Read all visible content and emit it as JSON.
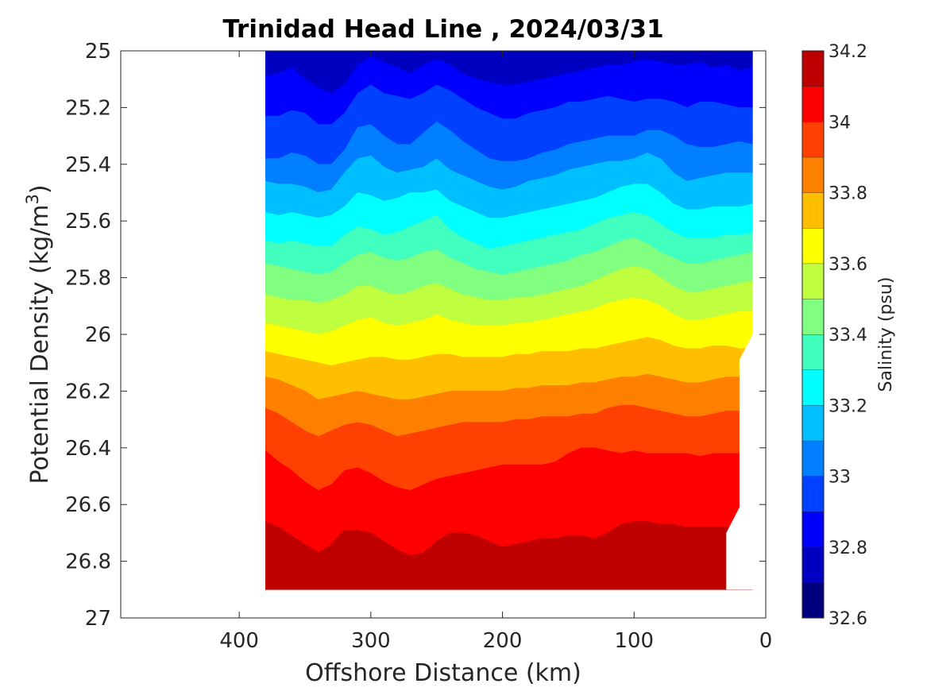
{
  "chart_data": {
    "type": "heatmap",
    "subtype": "filled-contour",
    "title": "Trinidad Head Line , 2024/03/31",
    "xlabel": "Offshore Distance (km)",
    "ylabel_main": "Potential Density (kg/m",
    "ylabel_sup": "3",
    "ylabel_close": ")",
    "xlim": [
      490,
      0
    ],
    "ylim": [
      25,
      27
    ],
    "y_reversed": true,
    "x_reversed": true,
    "x_ticks": [
      400,
      300,
      200,
      100,
      0
    ],
    "x_tick_labels": [
      "400",
      "300",
      "200",
      "100",
      "0"
    ],
    "y_ticks": [
      25,
      25.2,
      25.4,
      25.6,
      25.8,
      26,
      26.2,
      26.4,
      26.6,
      26.8,
      27
    ],
    "y_tick_labels": [
      "25",
      "25.2",
      "25.4",
      "25.6",
      "25.8",
      "26",
      "26.2",
      "26.4",
      "26.6",
      "26.8",
      "27"
    ],
    "colorbar": {
      "label": "Salinity (psu)",
      "clim": [
        32.6,
        34.2
      ],
      "levels": [
        32.6,
        32.7,
        32.8,
        32.9,
        33.0,
        33.1,
        33.2,
        33.3,
        33.4,
        33.5,
        33.6,
        33.7,
        33.8,
        33.9,
        34.0,
        34.1,
        34.2
      ],
      "colors": [
        "#00007f",
        "#0000c0",
        "#0000ff",
        "#0040ff",
        "#0080ff",
        "#00bfff",
        "#00ffff",
        "#40ffbf",
        "#80ff80",
        "#bfff40",
        "#ffff00",
        "#ffbf00",
        "#ff8000",
        "#ff4000",
        "#ff0000",
        "#bf0000"
      ],
      "ticks": [
        32.6,
        32.8,
        33,
        33.2,
        33.4,
        33.6,
        33.8,
        34,
        34.2
      ],
      "tick_labels": [
        "32.6",
        "32.8",
        "33",
        "33.2",
        "33.4",
        "33.6",
        "33.8",
        "34",
        "34.2"
      ]
    },
    "data_extent": {
      "x_range_km": [
        380,
        10
      ],
      "y_bottom_density": 26.9
    },
    "stations_km": [
      380,
      370,
      360,
      350,
      340,
      330,
      320,
      310,
      300,
      290,
      280,
      270,
      260,
      250,
      240,
      230,
      220,
      210,
      200,
      190,
      180,
      170,
      160,
      150,
      140,
      130,
      120,
      110,
      100,
      90,
      80,
      70,
      60,
      50,
      40,
      30,
      20,
      10
    ],
    "isohalines": [
      {
        "salinity": 32.8,
        "density": [
          25.09,
          25.08,
          25.06,
          25.1,
          25.13,
          25.15,
          25.12,
          25.05,
          25.02,
          25.04,
          25.06,
          25.08,
          25.05,
          25.03,
          25.05,
          25.08,
          25.1,
          25.11,
          25.12,
          25.12,
          25.11,
          25.1,
          25.09,
          25.08,
          25.07,
          25.06,
          25.05,
          25.05,
          25.04,
          25.03,
          25.04,
          25.05,
          25.05,
          25.04,
          25.06,
          25.05,
          25.07,
          25.06
        ]
      },
      {
        "salinity": 32.9,
        "density": [
          25.23,
          25.23,
          25.21,
          25.22,
          25.26,
          25.26,
          25.22,
          25.15,
          25.12,
          25.15,
          25.16,
          25.17,
          25.15,
          25.12,
          25.14,
          25.17,
          25.2,
          25.22,
          25.24,
          25.24,
          25.22,
          25.21,
          25.2,
          25.18,
          25.18,
          25.17,
          25.16,
          25.17,
          25.18,
          25.17,
          25.17,
          25.18,
          25.2,
          25.18,
          25.18,
          25.19,
          25.2,
          25.2
        ]
      },
      {
        "salinity": 33.0,
        "density": [
          25.38,
          25.38,
          25.36,
          25.37,
          25.4,
          25.4,
          25.35,
          25.27,
          25.26,
          25.3,
          25.33,
          25.33,
          25.29,
          25.25,
          25.28,
          25.32,
          25.35,
          25.38,
          25.39,
          25.39,
          25.38,
          25.36,
          25.35,
          25.33,
          25.32,
          25.31,
          25.3,
          25.3,
          25.3,
          25.28,
          25.28,
          25.3,
          25.33,
          25.34,
          25.34,
          25.33,
          25.32,
          25.33
        ]
      },
      {
        "salinity": 33.1,
        "density": [
          25.46,
          25.47,
          25.47,
          25.48,
          25.5,
          25.49,
          25.43,
          25.38,
          25.37,
          25.41,
          25.43,
          25.42,
          25.41,
          25.38,
          25.42,
          25.44,
          25.46,
          25.48,
          25.49,
          25.48,
          25.46,
          25.45,
          25.44,
          25.42,
          25.41,
          25.4,
          25.39,
          25.39,
          25.38,
          25.36,
          25.38,
          25.43,
          25.46,
          25.45,
          25.44,
          25.43,
          25.43,
          25.43
        ]
      },
      {
        "salinity": 33.2,
        "density": [
          25.57,
          25.58,
          25.57,
          25.58,
          25.59,
          25.58,
          25.55,
          25.5,
          25.51,
          25.53,
          25.52,
          25.5,
          25.5,
          25.49,
          25.53,
          25.55,
          25.57,
          25.59,
          25.59,
          25.58,
          25.57,
          25.56,
          25.55,
          25.54,
          25.53,
          25.52,
          25.5,
          25.48,
          25.47,
          25.47,
          25.5,
          25.54,
          25.56,
          25.56,
          25.55,
          25.55,
          25.55,
          25.54
        ]
      },
      {
        "salinity": 33.3,
        "density": [
          25.67,
          25.68,
          25.67,
          25.68,
          25.69,
          25.69,
          25.65,
          25.62,
          25.63,
          25.65,
          25.64,
          25.62,
          25.6,
          25.58,
          25.63,
          25.66,
          25.68,
          25.7,
          25.69,
          25.68,
          25.67,
          25.66,
          25.65,
          25.64,
          25.63,
          25.61,
          25.59,
          25.58,
          25.57,
          25.58,
          25.61,
          25.64,
          25.66,
          25.66,
          25.66,
          25.65,
          25.65,
          25.64
        ]
      },
      {
        "salinity": 33.4,
        "density": [
          25.75,
          25.76,
          25.77,
          25.78,
          25.79,
          25.78,
          25.75,
          25.72,
          25.71,
          25.73,
          25.74,
          25.73,
          25.71,
          25.7,
          25.73,
          25.75,
          25.77,
          25.78,
          25.79,
          25.78,
          25.77,
          25.76,
          25.75,
          25.74,
          25.72,
          25.71,
          25.69,
          25.67,
          25.66,
          25.68,
          25.71,
          25.73,
          25.75,
          25.75,
          25.74,
          25.73,
          25.72,
          25.71
        ]
      },
      {
        "salinity": 33.5,
        "density": [
          25.86,
          25.87,
          25.88,
          25.88,
          25.89,
          25.88,
          25.86,
          25.83,
          25.83,
          25.85,
          25.86,
          25.85,
          25.83,
          25.82,
          25.84,
          25.86,
          25.87,
          25.88,
          25.88,
          25.87,
          25.87,
          25.86,
          25.85,
          25.84,
          25.83,
          25.81,
          25.79,
          25.77,
          25.76,
          25.77,
          25.8,
          25.83,
          25.85,
          25.85,
          25.84,
          25.83,
          25.82,
          25.81
        ]
      },
      {
        "salinity": 33.6,
        "density": [
          25.96,
          25.97,
          25.98,
          25.99,
          26.0,
          25.99,
          25.97,
          25.95,
          25.94,
          25.96,
          25.97,
          25.96,
          25.95,
          25.93,
          25.95,
          25.96,
          25.97,
          25.97,
          25.97,
          25.96,
          25.96,
          25.95,
          25.94,
          25.93,
          25.92,
          25.91,
          25.89,
          25.88,
          25.87,
          25.88,
          25.9,
          25.93,
          25.95,
          25.95,
          25.94,
          25.93,
          25.92,
          25.92
        ]
      },
      {
        "salinity": 33.7,
        "density": [
          26.06,
          26.07,
          26.08,
          26.09,
          26.1,
          26.11,
          26.1,
          26.09,
          26.08,
          26.08,
          26.09,
          26.09,
          26.08,
          26.07,
          26.07,
          26.08,
          26.08,
          26.08,
          26.08,
          26.07,
          26.07,
          26.06,
          26.06,
          26.06,
          26.05,
          26.05,
          26.04,
          26.03,
          26.02,
          26.01,
          26.02,
          26.04,
          26.05,
          26.05,
          26.04,
          26.04,
          26.05,
          26.05
        ]
      },
      {
        "salinity": 33.8,
        "density": [
          26.15,
          26.16,
          26.18,
          26.2,
          26.23,
          26.22,
          26.21,
          26.2,
          26.21,
          26.22,
          26.23,
          26.23,
          26.22,
          26.21,
          26.2,
          26.2,
          26.2,
          26.2,
          26.2,
          26.19,
          26.19,
          26.18,
          26.18,
          26.18,
          26.17,
          26.17,
          26.16,
          26.15,
          26.15,
          26.14,
          26.15,
          26.16,
          26.17,
          26.17,
          26.16,
          26.15,
          26.15,
          26.15
        ]
      },
      {
        "salinity": 33.9,
        "density": [
          26.26,
          26.28,
          26.31,
          26.34,
          26.36,
          26.34,
          26.32,
          26.31,
          26.32,
          26.34,
          26.36,
          26.35,
          26.34,
          26.33,
          26.32,
          26.31,
          26.31,
          26.31,
          26.31,
          26.3,
          26.3,
          26.29,
          26.29,
          26.29,
          26.28,
          26.28,
          26.26,
          26.25,
          26.25,
          26.26,
          26.27,
          26.28,
          26.29,
          26.29,
          26.28,
          26.27,
          26.27,
          26.27
        ]
      },
      {
        "salinity": 34.0,
        "density": [
          26.41,
          26.45,
          26.48,
          26.52,
          26.55,
          26.53,
          26.48,
          26.47,
          26.49,
          26.52,
          26.54,
          26.55,
          26.53,
          26.51,
          26.5,
          26.49,
          26.48,
          26.47,
          26.46,
          26.46,
          26.46,
          26.46,
          26.45,
          26.42,
          26.4,
          26.4,
          26.41,
          26.42,
          26.41,
          26.42,
          26.42,
          26.42,
          26.42,
          26.43,
          26.42,
          26.42,
          26.42,
          26.42
        ]
      },
      {
        "salinity": 34.1,
        "density": [
          26.66,
          26.68,
          26.71,
          26.74,
          26.77,
          26.74,
          26.69,
          26.69,
          26.7,
          26.73,
          26.76,
          26.78,
          26.77,
          26.73,
          26.7,
          26.7,
          26.71,
          26.73,
          26.75,
          26.74,
          26.73,
          26.72,
          26.72,
          26.71,
          26.71,
          26.72,
          26.7,
          26.67,
          26.66,
          26.66,
          26.67,
          26.67,
          26.68,
          26.68,
          26.68,
          26.68,
          26.68,
          26.68
        ]
      }
    ],
    "coastal_boundary": [
      [
        10,
        26.0
      ],
      [
        20,
        26.09
      ],
      [
        20,
        26.61
      ],
      [
        30,
        26.7
      ],
      [
        30,
        26.9
      ]
    ]
  }
}
